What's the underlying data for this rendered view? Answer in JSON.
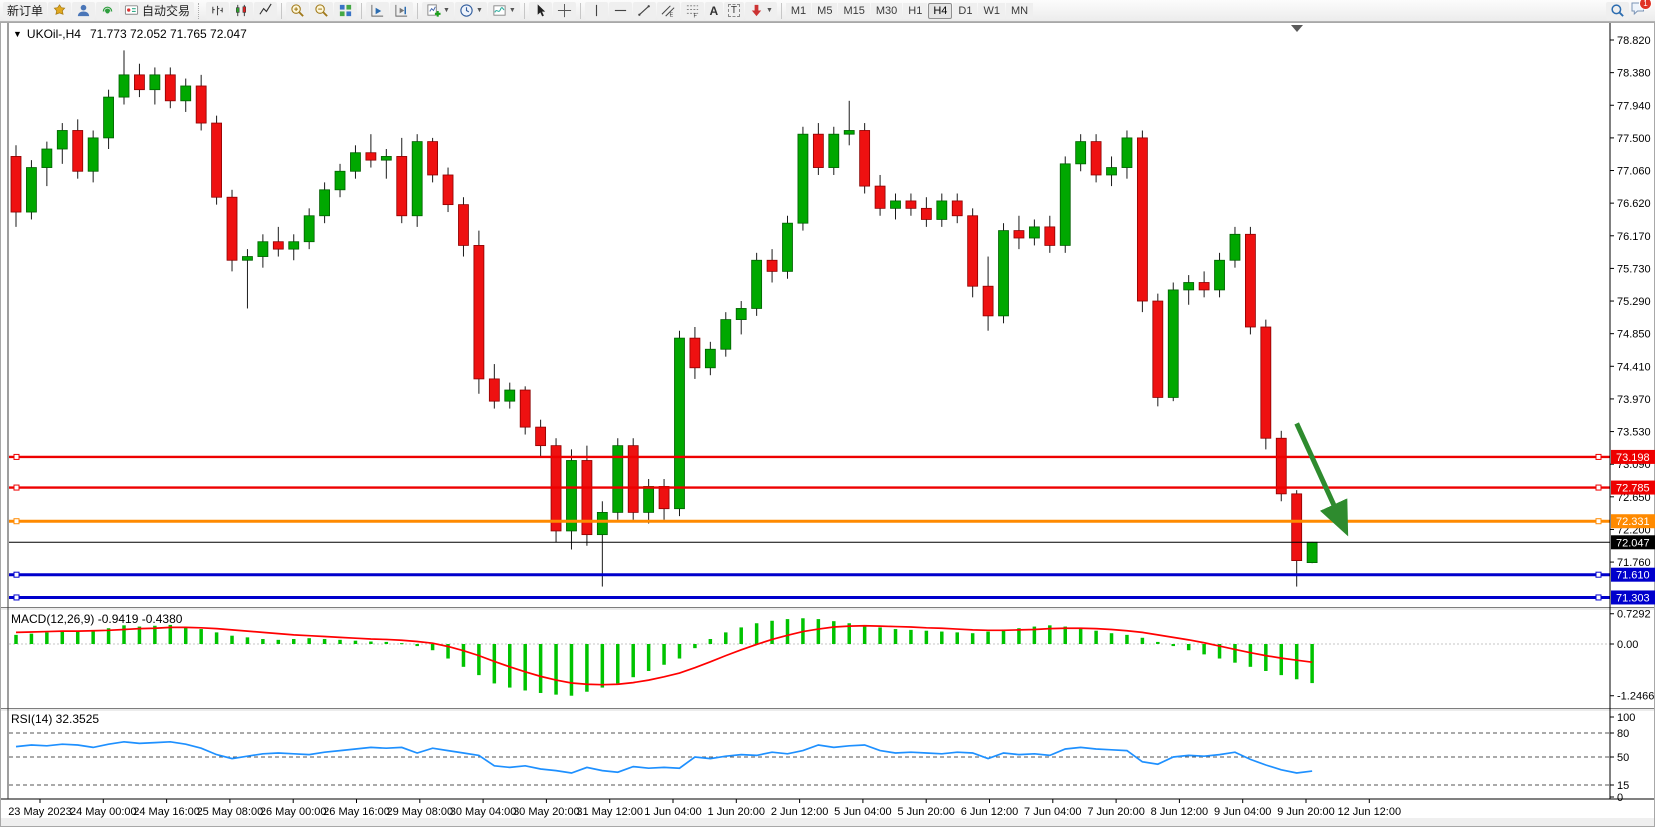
{
  "toolbar": {
    "new_order": "新订单",
    "auto_trading": "自动交易",
    "timeframes": [
      "M1",
      "M5",
      "M15",
      "M30",
      "H1",
      "H4",
      "D1",
      "W1",
      "MN"
    ],
    "active_timeframe": "H4",
    "notification_badge": "1"
  },
  "chart": {
    "symbol_title": "UKOil-,H4",
    "ohlc_display": "71.773 72.052 71.765 72.047"
  },
  "indicators": {
    "macd_label": "MACD(12,26,9) -0.9419 -0.4380",
    "rsi_label": "RSI(14) 32.3525"
  },
  "axes": {
    "price_ticks": [
      "78.820",
      "78.380",
      "77.940",
      "77.500",
      "77.060",
      "76.620",
      "76.170",
      "75.730",
      "75.290",
      "74.850",
      "74.410",
      "73.970",
      "73.530",
      "73.090",
      "72.650",
      "72.200",
      "71.760"
    ],
    "macd_ticks": [
      {
        "label": "0.7292",
        "value": 0.7292
      },
      {
        "label": "0.00",
        "value": 0
      },
      {
        "label": "-1.2466",
        "value": -1.2466
      }
    ],
    "rsi_ticks": [
      {
        "label": "100",
        "value": 100,
        "dashed": false
      },
      {
        "label": "80",
        "value": 80,
        "dashed": true
      },
      {
        "label": "50",
        "value": 50,
        "dashed": true
      },
      {
        "label": "15",
        "value": 15,
        "dashed": true
      },
      {
        "label": "0",
        "value": 0,
        "dashed": false
      }
    ],
    "time_labels": [
      "23 May 2023",
      "24 May 00:00",
      "24 May 16:00",
      "25 May 08:00",
      "26 May 00:00",
      "26 May 16:00",
      "29 May 08:00",
      "30 May 04:00",
      "30 May 20:00",
      "31 May 12:00",
      "1 Jun 04:00",
      "1 Jun 20:00",
      "2 Jun 12:00",
      "5 Jun 04:00",
      "5 Jun 20:00",
      "6 Jun 12:00",
      "7 Jun 04:00",
      "7 Jun 20:00",
      "8 Jun 12:00",
      "9 Jun 04:00",
      "9 Jun 20:00",
      "12 Jun 12:00"
    ]
  },
  "hlines": [
    {
      "price": 73.198,
      "label": "73.198",
      "color": "#ee0000",
      "width": 2.4
    },
    {
      "price": 72.785,
      "label": "72.785",
      "color": "#ee0000",
      "width": 2.4
    },
    {
      "price": 72.331,
      "label": "72.331",
      "color": "#ff8a00",
      "width": 3
    },
    {
      "price": 72.047,
      "label": "72.047",
      "color": "#000000",
      "width": 1
    },
    {
      "price": 71.61,
      "label": "71.610",
      "color": "#0000cc",
      "width": 3
    },
    {
      "price": 71.303,
      "label": "71.303",
      "color": "#0000cc",
      "width": 3
    }
  ],
  "colors": {
    "candle_up": "#00a800",
    "candle_up_edge": "#005f00",
    "candle_down": "#ee1111",
    "candle_down_edge": "#8c0000",
    "wick": "#1a1a1a",
    "macd_hist": "#00c300",
    "macd_signal": "#ff0000",
    "rsi_line": "#1e90ff",
    "arrow": "#2e8b2e"
  },
  "chart_data": {
    "type": "candlestick",
    "symbol": "UKOil-",
    "timeframe": "H4",
    "current_bar": {
      "open": 71.773,
      "high": 72.052,
      "low": 71.765,
      "close": 72.047
    },
    "price_axis": {
      "top": 78.82,
      "tick_step": 0.44
    },
    "candles_ohlc": [
      [
        77.25,
        77.4,
        76.3,
        76.5
      ],
      [
        76.5,
        77.2,
        76.4,
        77.1
      ],
      [
        77.1,
        77.45,
        76.85,
        77.35
      ],
      [
        77.35,
        77.7,
        77.15,
        77.6
      ],
      [
        77.6,
        77.75,
        76.95,
        77.05
      ],
      [
        77.05,
        77.6,
        76.9,
        77.5
      ],
      [
        77.5,
        78.15,
        77.35,
        78.05
      ],
      [
        78.05,
        78.68,
        77.95,
        78.35
      ],
      [
        78.35,
        78.5,
        78.05,
        78.15
      ],
      [
        78.15,
        78.45,
        77.95,
        78.35
      ],
      [
        78.35,
        78.45,
        77.9,
        78.0
      ],
      [
        78.0,
        78.3,
        77.85,
        78.2
      ],
      [
        78.2,
        78.35,
        77.6,
        77.7
      ],
      [
        77.7,
        77.8,
        76.6,
        76.7
      ],
      [
        76.7,
        76.8,
        75.7,
        75.85
      ],
      [
        75.85,
        76.0,
        75.2,
        75.9
      ],
      [
        75.9,
        76.2,
        75.75,
        76.1
      ],
      [
        76.1,
        76.3,
        75.9,
        76.0
      ],
      [
        76.0,
        76.2,
        75.85,
        76.1
      ],
      [
        76.1,
        76.55,
        76.0,
        76.45
      ],
      [
        76.45,
        76.9,
        76.35,
        76.8
      ],
      [
        76.8,
        77.15,
        76.7,
        77.05
      ],
      [
        77.05,
        77.4,
        76.95,
        77.3
      ],
      [
        77.3,
        77.55,
        77.1,
        77.2
      ],
      [
        77.2,
        77.35,
        76.95,
        77.25
      ],
      [
        77.25,
        77.5,
        76.35,
        76.45
      ],
      [
        76.45,
        77.55,
        76.3,
        77.45
      ],
      [
        77.45,
        77.5,
        76.9,
        77.0
      ],
      [
        77.0,
        77.1,
        76.5,
        76.6
      ],
      [
        76.6,
        76.7,
        75.9,
        76.05
      ],
      [
        76.05,
        76.25,
        74.05,
        74.25
      ],
      [
        74.25,
        74.45,
        73.85,
        73.95
      ],
      [
        73.95,
        74.2,
        73.85,
        74.1
      ],
      [
        74.1,
        74.15,
        73.5,
        73.6
      ],
      [
        73.6,
        73.7,
        73.2,
        73.35
      ],
      [
        73.35,
        73.45,
        72.05,
        72.2
      ],
      [
        72.2,
        73.3,
        71.95,
        73.15
      ],
      [
        73.15,
        73.35,
        72.0,
        72.15
      ],
      [
        72.15,
        72.6,
        71.45,
        72.45
      ],
      [
        72.45,
        73.45,
        72.35,
        73.35
      ],
      [
        73.35,
        73.45,
        72.35,
        72.45
      ],
      [
        72.45,
        72.9,
        72.3,
        72.8
      ],
      [
        72.8,
        72.9,
        72.35,
        72.5
      ],
      [
        72.5,
        74.9,
        72.4,
        74.8
      ],
      [
        74.8,
        74.95,
        74.25,
        74.4
      ],
      [
        74.4,
        74.75,
        74.3,
        74.65
      ],
      [
        74.65,
        75.15,
        74.55,
        75.05
      ],
      [
        75.05,
        75.3,
        74.85,
        75.2
      ],
      [
        75.2,
        75.95,
        75.1,
        75.85
      ],
      [
        75.85,
        76.0,
        75.55,
        75.7
      ],
      [
        75.7,
        76.45,
        75.6,
        76.35
      ],
      [
        76.35,
        77.65,
        76.25,
        77.55
      ],
      [
        77.55,
        77.7,
        77.0,
        77.1
      ],
      [
        77.1,
        77.65,
        77.0,
        77.55
      ],
      [
        77.55,
        78.0,
        77.4,
        77.6
      ],
      [
        77.6,
        77.7,
        76.75,
        76.85
      ],
      [
        76.85,
        77.0,
        76.45,
        76.55
      ],
      [
        76.55,
        76.75,
        76.4,
        76.65
      ],
      [
        76.65,
        76.75,
        76.45,
        76.55
      ],
      [
        76.55,
        76.7,
        76.3,
        76.4
      ],
      [
        76.4,
        76.75,
        76.3,
        76.65
      ],
      [
        76.65,
        76.75,
        76.35,
        76.45
      ],
      [
        76.45,
        76.55,
        75.35,
        75.5
      ],
      [
        75.5,
        75.9,
        74.9,
        75.1
      ],
      [
        75.1,
        76.35,
        75.0,
        76.25
      ],
      [
        76.25,
        76.45,
        76.0,
        76.15
      ],
      [
        76.15,
        76.4,
        76.05,
        76.3
      ],
      [
        76.3,
        76.45,
        75.95,
        76.05
      ],
      [
        76.05,
        77.25,
        75.95,
        77.15
      ],
      [
        77.15,
        77.55,
        77.05,
        77.45
      ],
      [
        77.45,
        77.55,
        76.9,
        77.0
      ],
      [
        77.0,
        77.25,
        76.85,
        77.1
      ],
      [
        77.1,
        77.6,
        76.95,
        77.5
      ],
      [
        77.5,
        77.6,
        75.15,
        75.3
      ],
      [
        75.3,
        75.4,
        73.88,
        74.0
      ],
      [
        74.0,
        75.55,
        73.95,
        75.45
      ],
      [
        75.45,
        75.65,
        75.25,
        75.55
      ],
      [
        75.55,
        75.7,
        75.35,
        75.45
      ],
      [
        75.45,
        75.95,
        75.35,
        75.85
      ],
      [
        75.85,
        76.3,
        75.75,
        76.2
      ],
      [
        76.2,
        76.3,
        74.85,
        74.95
      ],
      [
        74.95,
        75.05,
        73.3,
        73.45
      ],
      [
        73.45,
        73.55,
        72.6,
        72.7
      ],
      [
        72.7,
        72.75,
        71.45,
        71.8
      ],
      [
        71.773,
        72.052,
        71.765,
        72.047
      ]
    ],
    "macd": {
      "params": "12,26,9",
      "main_value": -0.9419,
      "signal_value": -0.438,
      "scale_max": 0.7292,
      "scale_min": -1.2466,
      "histogram": [
        0.22,
        0.25,
        0.28,
        0.32,
        0.3,
        0.33,
        0.38,
        0.45,
        0.42,
        0.44,
        0.46,
        0.4,
        0.36,
        0.28,
        0.2,
        0.16,
        0.12,
        0.1,
        0.12,
        0.14,
        0.12,
        0.1,
        0.08,
        0.06,
        0.05,
        0.02,
        -0.05,
        -0.15,
        -0.35,
        -0.55,
        -0.75,
        -0.95,
        -1.05,
        -1.12,
        -1.18,
        -1.22,
        -1.246,
        -1.15,
        -1.05,
        -0.95,
        -0.8,
        -0.65,
        -0.5,
        -0.35,
        -0.1,
        0.12,
        0.28,
        0.4,
        0.5,
        0.56,
        0.6,
        0.62,
        0.6,
        0.55,
        0.5,
        0.45,
        0.4,
        0.36,
        0.34,
        0.32,
        0.3,
        0.28,
        0.26,
        0.3,
        0.35,
        0.38,
        0.42,
        0.45,
        0.42,
        0.38,
        0.32,
        0.26,
        0.22,
        0.15,
        0.05,
        -0.05,
        -0.15,
        -0.25,
        -0.35,
        -0.45,
        -0.55,
        -0.65,
        -0.75,
        -0.85,
        -0.9419
      ],
      "signal_line": [
        0.28,
        0.29,
        0.3,
        0.31,
        0.31,
        0.32,
        0.33,
        0.35,
        0.37,
        0.38,
        0.4,
        0.4,
        0.39,
        0.37,
        0.34,
        0.31,
        0.28,
        0.25,
        0.22,
        0.2,
        0.18,
        0.16,
        0.14,
        0.12,
        0.11,
        0.09,
        0.06,
        0.02,
        -0.06,
        -0.16,
        -0.28,
        -0.42,
        -0.55,
        -0.67,
        -0.78,
        -0.87,
        -0.94,
        -0.97,
        -0.98,
        -0.97,
        -0.93,
        -0.87,
        -0.79,
        -0.7,
        -0.57,
        -0.43,
        -0.28,
        -0.14,
        -0.01,
        0.11,
        0.21,
        0.3,
        0.36,
        0.41,
        0.43,
        0.44,
        0.43,
        0.42,
        0.41,
        0.39,
        0.38,
        0.36,
        0.34,
        0.33,
        0.33,
        0.34,
        0.35,
        0.37,
        0.38,
        0.38,
        0.37,
        0.35,
        0.32,
        0.28,
        0.22,
        0.16,
        0.1,
        0.03,
        -0.05,
        -0.13,
        -0.21,
        -0.28,
        -0.34,
        -0.39,
        -0.438
      ]
    },
    "rsi": {
      "params": "14",
      "value": 32.3525,
      "levels": [
        80,
        50,
        15
      ],
      "values": [
        63,
        65,
        64,
        66,
        65,
        62,
        66,
        69,
        67,
        68,
        69,
        66,
        61,
        53,
        48,
        51,
        54,
        55,
        54,
        53,
        56,
        58,
        60,
        62,
        61,
        62,
        55,
        61,
        58,
        55,
        52,
        39,
        37,
        39,
        35,
        33,
        30,
        37,
        33,
        31,
        38,
        36,
        37,
        36,
        50,
        48,
        51,
        53,
        52,
        56,
        54,
        58,
        65,
        62,
        64,
        65,
        58,
        55,
        56,
        55,
        54,
        56,
        55,
        48,
        55,
        53,
        54,
        52,
        60,
        62,
        60,
        59,
        58,
        44,
        41,
        50,
        52,
        51,
        53,
        56,
        47,
        40,
        34,
        30,
        32.4
      ]
    },
    "arrow_annotation": {
      "from": {
        "bar": 83,
        "price": 73.65
      },
      "to": {
        "bar": 86,
        "price": 72.28
      },
      "direction": "down-right"
    }
  }
}
